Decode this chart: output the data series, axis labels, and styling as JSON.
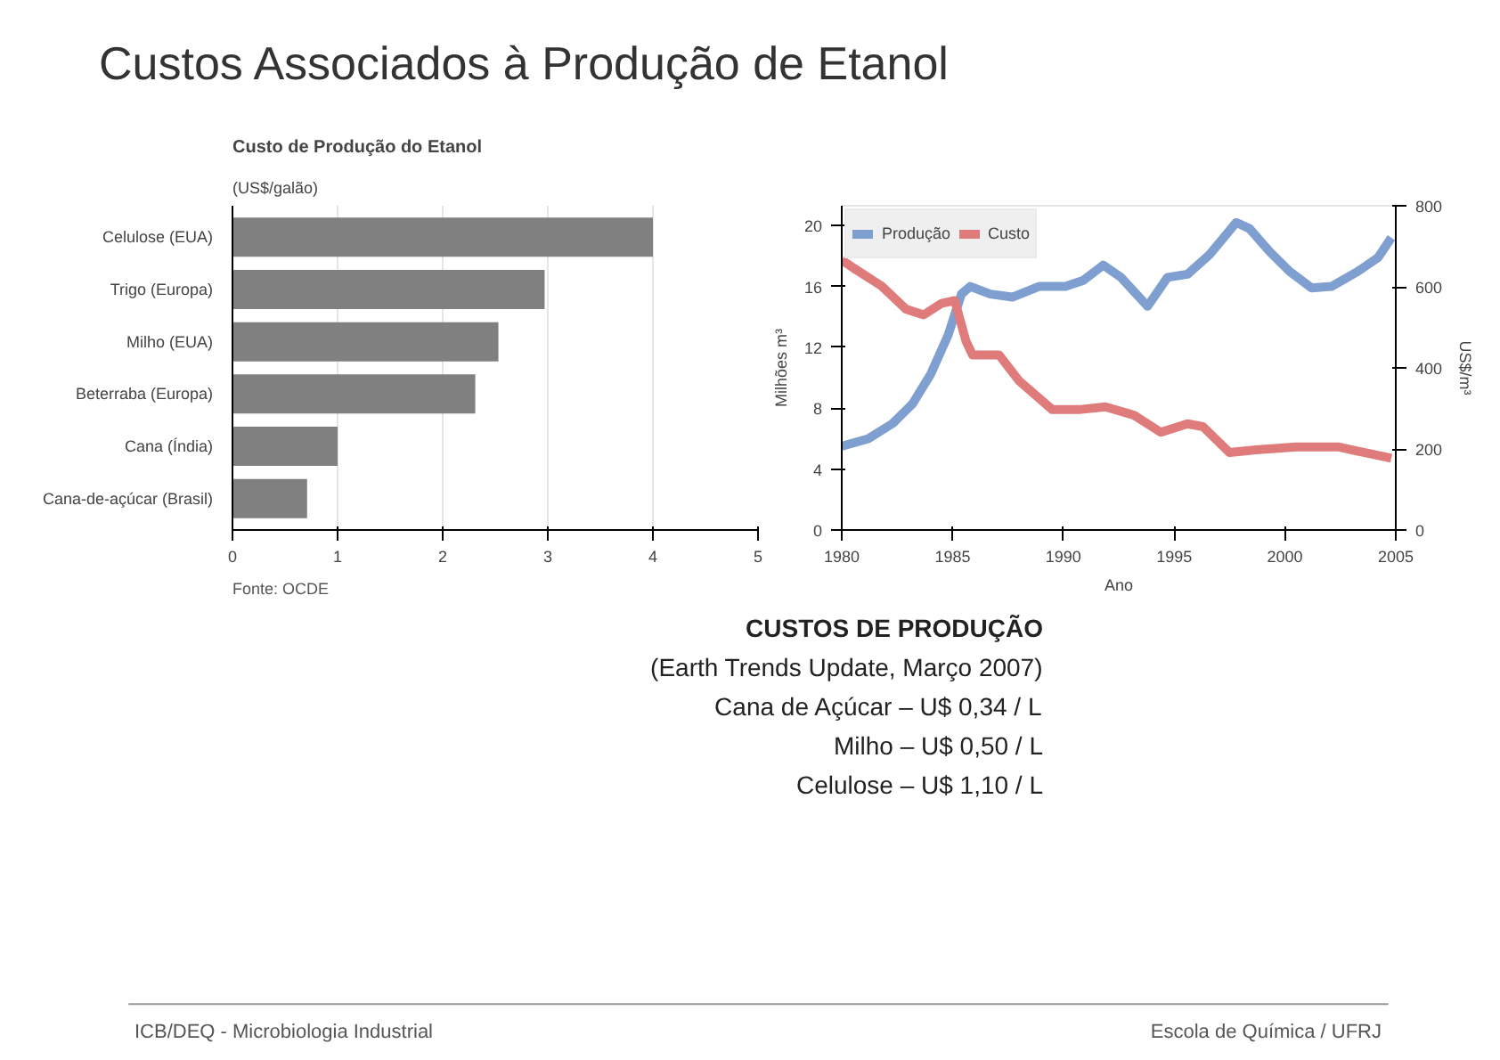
{
  "chart_data": [
    {
      "type": "other",
      "title": "Custos Associados à Produção de Etanol"
    },
    {
      "type": "bar",
      "title": "Custo de Produção do Etanol",
      "subtitle": "(US$/galão)",
      "orientation": "horizontal",
      "categories": [
        "Celulose (EUA)",
        "Trigo (Europa)",
        "Milho (EUA)",
        "Beterraba (Europa)",
        "Cana (Índia)",
        "Cana-de-açúcar (Brasil)"
      ],
      "values": [
        4.0,
        2.97,
        2.53,
        2.31,
        1.0,
        0.71
      ],
      "color": "#808080",
      "xlim": [
        0,
        5
      ],
      "xticks": [
        0,
        1,
        2,
        3,
        4,
        5
      ],
      "grid": "x",
      "annotations": [
        "Fonte: OCDE"
      ]
    },
    {
      "type": "line",
      "xlabel": "Ano",
      "ylabel": "Milhões m³",
      "y2label": "US$/m³",
      "xlim": [
        1980,
        2005
      ],
      "xticks": [
        1980,
        1985,
        1990,
        1995,
        2000,
        2005
      ],
      "ylim": [
        0,
        21.3
      ],
      "yticks": [
        0,
        4,
        8,
        12,
        16,
        20
      ],
      "y2lim": [
        0,
        800
      ],
      "y2ticks": [
        0,
        200,
        400,
        600,
        800
      ],
      "legend": "top left",
      "line_style": "solid",
      "grid": false,
      "series": [
        {
          "name": "Produção",
          "color": "#7f9fd0",
          "x": [
            1980.0,
            1981.2,
            1982.3,
            1983.2,
            1984.0,
            1984.8,
            1985.4,
            1985.8,
            1986.7,
            1987.7,
            1988.9,
            1990.1,
            1990.9,
            1991.8,
            1992.6,
            1993.8,
            1994.7,
            1995.6,
            1996.6,
            1997.8,
            1998.4,
            1999.3,
            2000.2,
            2001.2,
            2002.1,
            2003.3,
            2004.2,
            2004.8
          ],
          "values": [
            5.5,
            6.0,
            7.0,
            8.3,
            10.2,
            12.8,
            15.5,
            16.0,
            15.5,
            15.3,
            16.0,
            16.0,
            16.4,
            17.4,
            16.6,
            14.7,
            16.6,
            16.8,
            18.1,
            20.2,
            19.8,
            18.3,
            17.0,
            15.9,
            16.0,
            17.0,
            17.9,
            19.2
          ]
        },
        {
          "name": "Custo",
          "color": "#e07b7b",
          "axis": "y2",
          "x": [
            1980.0,
            1980.6,
            1981.8,
            1982.9,
            1983.7,
            1984.5,
            1985.1,
            1985.6,
            1985.9,
            1987.1,
            1988.0,
            1989.5,
            1990.7,
            1991.9,
            1993.2,
            1994.4,
            1995.6,
            1996.3,
            1997.5,
            1998.7,
            2000.5,
            2002.4,
            2003.6,
            2004.8
          ],
          "values": [
            666,
            644,
            602,
            545,
            531,
            559,
            566,
            467,
            432,
            432,
            368,
            297,
            297,
            304,
            283,
            241,
            262,
            255,
            191,
            198,
            205,
            205,
            191,
            177
          ]
        }
      ]
    },
    {
      "type": "other",
      "annotations": [
        "CUSTOS DE PRODUÇÃO",
        "(Earth Trends Update, Março 2007)",
        "Cana de Açúcar – U$ 0,34 / L",
        "Milho – U$ 0,50 / L",
        "Celulose – U$ 1,10 / L",
        "ICB/DEQ - Microbiologia Industrial",
        "Escola de Química / UFRJ"
      ]
    }
  ]
}
